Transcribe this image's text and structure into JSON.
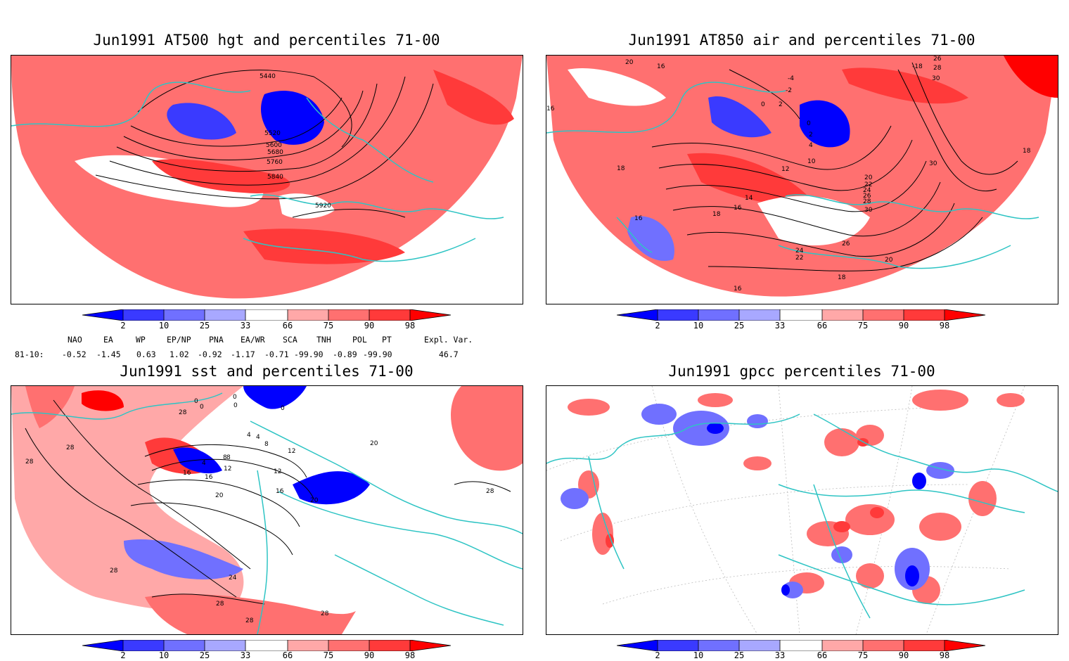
{
  "panels": [
    {
      "title": "Jun1991 AT500 hgt and percentiles 71-00",
      "contour_labels": [
        "5440",
        "5520",
        "5600",
        "5680",
        "5760",
        "5840",
        "5920"
      ]
    },
    {
      "title": "Jun1991 AT850 air and percentiles 71-00",
      "contour_labels": [
        "20",
        "16",
        "16",
        "18",
        "-4",
        "-2",
        "-18",
        "26",
        "28",
        "30",
        "0",
        "2",
        "0",
        "2",
        "4",
        "12",
        "10",
        "14",
        "16",
        "18",
        "20",
        "22",
        "24",
        "26",
        "28",
        "30",
        "30",
        "18",
        "26",
        "24",
        "22",
        "20",
        "18",
        "16",
        "16"
      ]
    },
    {
      "title": "Jun1991 sst and percentiles 71-00",
      "contour_labels": [
        "0",
        "0",
        "0",
        "0",
        "0",
        "4",
        "4",
        "8",
        "8",
        "12",
        "4",
        "8",
        "12",
        "12",
        "16",
        "16",
        "16",
        "20",
        "20",
        "20",
        "28",
        "28",
        "28",
        "24",
        "28",
        "28",
        "28",
        "28",
        "28"
      ]
    },
    {
      "title": "Jun1991 gpcc percentiles 71-00",
      "contour_labels": []
    }
  ],
  "colorbar": {
    "labels": [
      "2",
      "10",
      "25",
      "33",
      "66",
      "75",
      "90",
      "98"
    ],
    "colors": {
      "p2": "#0000ff",
      "p10": "#3a3aff",
      "p25": "#7070ff",
      "p33": "#a8a8ff",
      "p66": "#ffa8a8",
      "p75": "#ff7070",
      "p90": "#ff3a3a",
      "p98": "#ff0000"
    }
  },
  "indices": {
    "header": [
      "NAO",
      "EA",
      "WP",
      "EP/NP",
      "PNA",
      "EA/WR",
      "SCA",
      "TNH",
      "POL",
      "PT",
      "Expl. Var."
    ],
    "row_label": "81-10:",
    "values": [
      "-0.52",
      "-1.45",
      "0.63",
      "1.02",
      "-0.92",
      "-1.17",
      "-0.71",
      "-99.90",
      "-0.89",
      "-99.90",
      "46.7"
    ]
  },
  "colors": {
    "coast": "#2ec4c4",
    "contour": "#000000",
    "frame": "#000000"
  }
}
